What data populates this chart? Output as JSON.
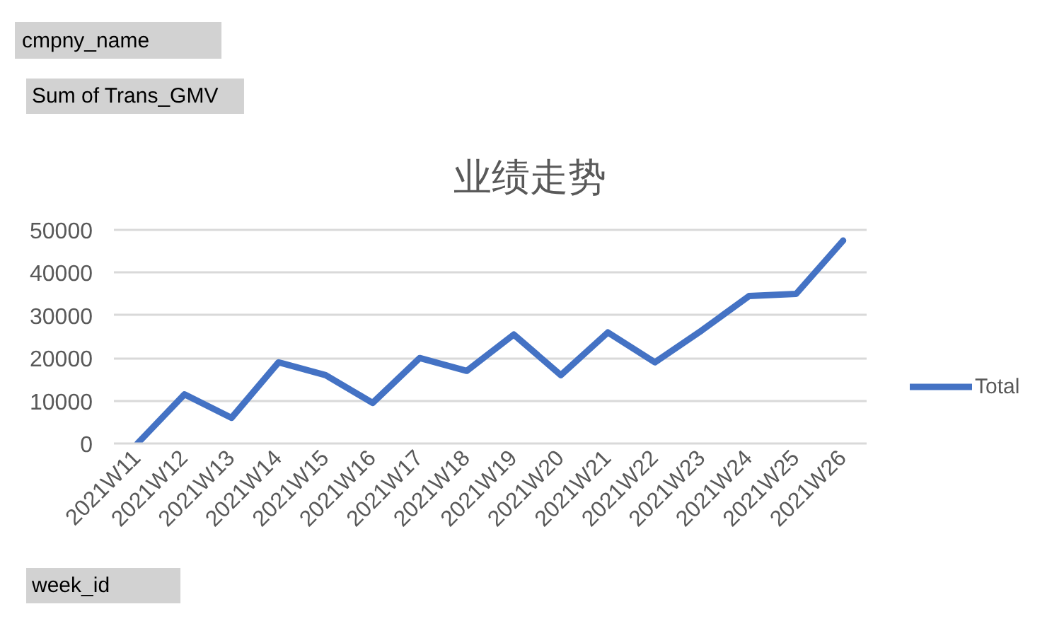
{
  "chart_data": {
    "type": "line",
    "title": "业绩走势",
    "categories": [
      "2021W11",
      "2021W12",
      "2021W13",
      "2021W14",
      "2021W15",
      "2021W16",
      "2021W17",
      "2021W18",
      "2021W19",
      "2021W20",
      "2021W21",
      "2021W22",
      "2021W23",
      "2021W24",
      "2021W25",
      "2021W26"
    ],
    "series": [
      {
        "name": "Total",
        "color": "#4472c4",
        "values": [
          0,
          11500,
          6000,
          19000,
          16000,
          9500,
          20000,
          17000,
          25500,
          16000,
          26000,
          19000,
          26500,
          34500,
          35000,
          47500
        ]
      }
    ],
    "ylim": [
      0,
      50000
    ],
    "yticks": [
      0,
      10000,
      20000,
      30000,
      40000,
      50000
    ],
    "grid": "y",
    "legend": "right",
    "annotations": [
      "cmpny_name",
      "Sum of Trans_GMV",
      "week_id"
    ]
  }
}
